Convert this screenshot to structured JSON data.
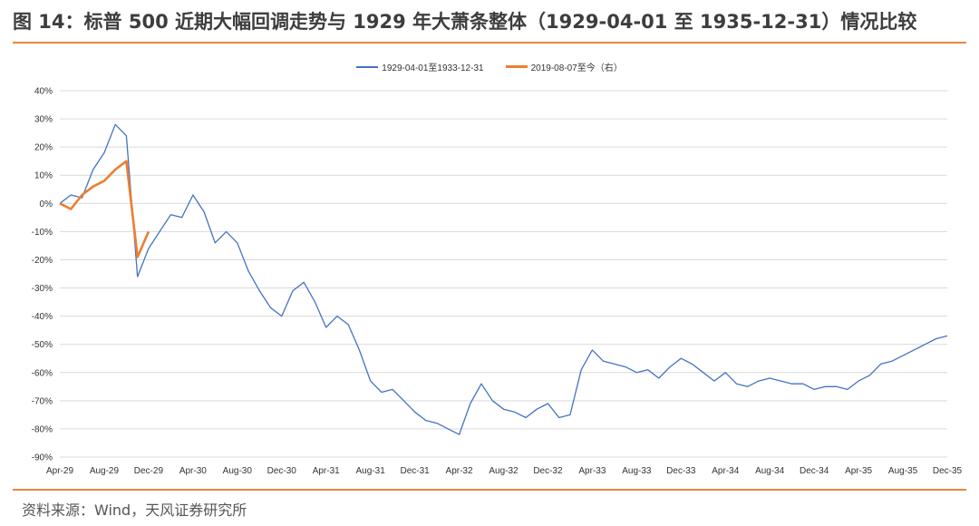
{
  "header": {
    "title": "图 14：标普 500 近期大幅回调走势与 1929 年大萧条整体（1929-04-01 至 1935-12-31）情况比较"
  },
  "footer": {
    "source": "资料来源：Wind，天风证券研究所"
  },
  "colors": {
    "accent": "#e5873f",
    "series_1929": "#4472c4",
    "series_2019": "#ed7d31",
    "grid": "#d9d9d9"
  },
  "chart_data": {
    "type": "line",
    "x_tick_labels": [
      "Apr-29",
      "Aug-29",
      "Dec-29",
      "Apr-30",
      "Aug-30",
      "Dec-30",
      "Apr-31",
      "Aug-31",
      "Dec-31",
      "Apr-32",
      "Aug-32",
      "Dec-32",
      "Apr-33",
      "Aug-33",
      "Dec-33",
      "Apr-34",
      "Aug-34",
      "Dec-34",
      "Apr-35",
      "Aug-35",
      "Dec-35"
    ],
    "y_tick_labels": [
      "40%",
      "30%",
      "20%",
      "10%",
      "0%",
      "-10%",
      "-20%",
      "-30%",
      "-40%",
      "-50%",
      "-60%",
      "-70%",
      "-80%",
      "-90%"
    ],
    "ylim": [
      -90,
      40
    ],
    "y_unit": "%",
    "grid": true,
    "legend_position": "top-center",
    "series": [
      {
        "name": "1929-04-01至1933-12-31",
        "x": [
          "1929-04",
          "1929-05",
          "1929-06",
          "1929-07",
          "1929-08",
          "1929-09",
          "1929-10",
          "1929-11",
          "1929-12",
          "1930-01",
          "1930-02",
          "1930-03",
          "1930-04",
          "1930-05",
          "1930-06",
          "1930-07",
          "1930-08",
          "1930-09",
          "1930-10",
          "1930-11",
          "1930-12",
          "1931-01",
          "1931-02",
          "1931-03",
          "1931-04",
          "1931-05",
          "1931-06",
          "1931-07",
          "1931-08",
          "1931-09",
          "1931-10",
          "1931-11",
          "1931-12",
          "1932-01",
          "1932-02",
          "1932-03",
          "1932-04",
          "1932-05",
          "1932-06",
          "1932-07",
          "1932-08",
          "1932-09",
          "1932-10",
          "1932-11",
          "1932-12",
          "1933-01",
          "1933-02",
          "1933-03",
          "1933-04",
          "1933-05",
          "1933-06",
          "1933-07",
          "1933-08",
          "1933-09",
          "1933-10",
          "1933-11",
          "1933-12",
          "1934-01",
          "1934-02",
          "1934-03",
          "1934-04",
          "1934-05",
          "1934-06",
          "1934-07",
          "1934-08",
          "1934-09",
          "1934-10",
          "1934-11",
          "1934-12",
          "1935-01",
          "1935-02",
          "1935-03",
          "1935-04",
          "1935-05",
          "1935-06",
          "1935-07",
          "1935-08",
          "1935-09",
          "1935-10",
          "1935-11",
          "1935-12"
        ],
        "values": [
          0,
          3,
          2,
          12,
          18,
          28,
          24,
          -26,
          -16,
          -10,
          -4,
          -5,
          3,
          -3,
          -14,
          -10,
          -14,
          -24,
          -31,
          -37,
          -40,
          -31,
          -28,
          -35,
          -44,
          -40,
          -43,
          -52,
          -63,
          -67,
          -66,
          -70,
          -74,
          -77,
          -78,
          -80,
          -82,
          -71,
          -64,
          -70,
          -73,
          -74,
          -76,
          -73,
          -71,
          -76,
          -75,
          -59,
          -52,
          -56,
          -57,
          -58,
          -60,
          -59,
          -62,
          -58,
          -55,
          -57,
          -60,
          -63,
          -60,
          -64,
          -65,
          -63,
          -62,
          -63,
          -64,
          -64,
          -66,
          -65,
          -65,
          -66,
          -63,
          -61,
          -57,
          -56,
          -54,
          -52,
          -50,
          -48,
          -47
        ]
      },
      {
        "name": "2019-08-07至今（右）",
        "x": [
          "1929-04",
          "1929-05",
          "1929-06",
          "1929-07",
          "1929-08",
          "1929-09",
          "1929-10",
          "1929-11",
          "1929-12"
        ],
        "values": [
          0,
          -2,
          3,
          6,
          8,
          12,
          15,
          -19,
          -10
        ]
      }
    ]
  }
}
